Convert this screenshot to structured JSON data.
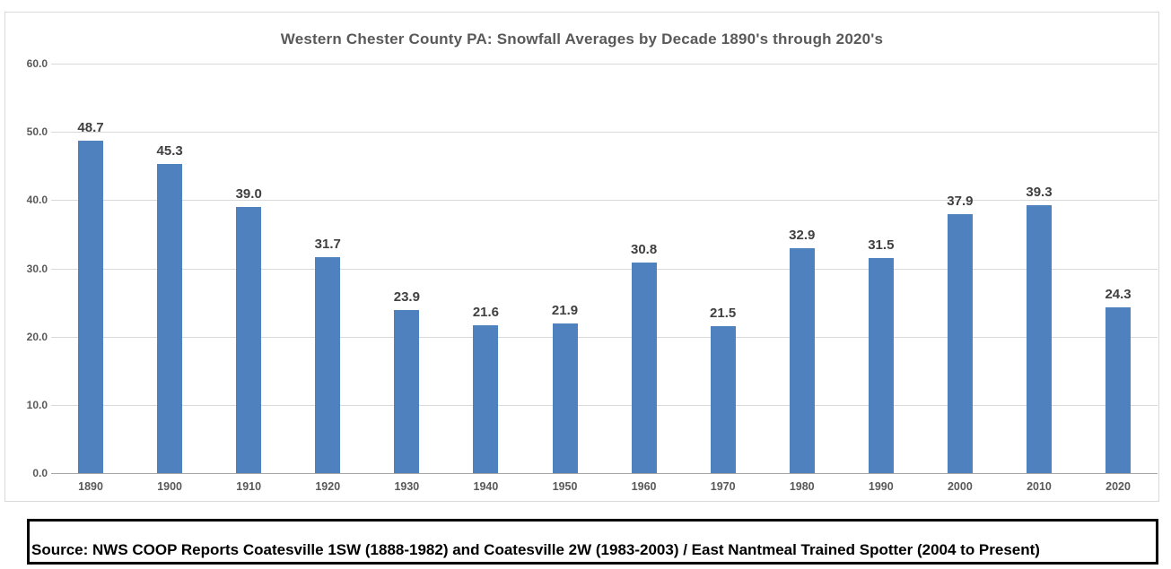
{
  "chart_data": {
    "type": "bar",
    "title": "Western Chester County PA: Snowfall Averages by Decade 1890's through 2020's",
    "categories": [
      "1890",
      "1900",
      "1910",
      "1920",
      "1930",
      "1940",
      "1950",
      "1960",
      "1970",
      "1980",
      "1990",
      "2000",
      "2010",
      "2020"
    ],
    "values": [
      48.7,
      45.3,
      39.0,
      31.7,
      23.9,
      21.6,
      21.9,
      30.8,
      21.5,
      32.9,
      31.5,
      37.9,
      39.3,
      24.3
    ],
    "value_labels": [
      "48.7",
      "45.3",
      "39.0",
      "31.7",
      "23.9",
      "21.6",
      "21.9",
      "30.8",
      "21.5",
      "32.9",
      "31.5",
      "37.9",
      "39.3",
      "24.3"
    ],
    "xlabel": "",
    "ylabel": "",
    "ylim": [
      0,
      60
    ],
    "yticks": [
      0.0,
      10.0,
      20.0,
      30.0,
      40.0,
      50.0,
      60.0
    ],
    "ytick_labels": [
      "0.0",
      "10.0",
      "20.0",
      "30.0",
      "40.0",
      "50.0",
      "60.0"
    ],
    "grid": true,
    "legend": false,
    "bar_color": "#4e81bd",
    "gridline_color": "#d9d9d9",
    "axis_line_color": "#a6a6a6",
    "title_color": "#595959",
    "label_color": "#404040"
  },
  "source": {
    "text": "Source: NWS COOP Reports Coatesville 1SW (1888-1982) and Coatesville 2W (1983-2003) / East Nantmeal Trained Spotter (2004 to Present)"
  }
}
